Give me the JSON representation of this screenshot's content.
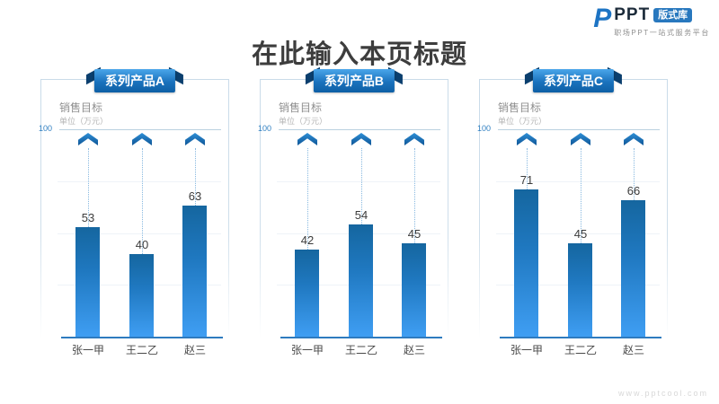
{
  "page": {
    "title": "在此输入本页标题",
    "watermark": "www.pptcool.com"
  },
  "logo": {
    "p_icon": "P",
    "name": "PPT",
    "badge": "版式库",
    "tagline": "职场PPT一站式服务平台"
  },
  "chart_common": {
    "legend_title": "销售目标",
    "unit_label": "单位（万元）",
    "axis_tick": "100"
  },
  "colors": {
    "accent_blue": "#1d74c4",
    "bar_gradient_top": "#15669f",
    "bar_gradient_bottom": "#3f9ef3",
    "ribbon_dark": "#0b3f6e",
    "panel_border": "#c9dbe9",
    "axis_line": "#2e7bbf"
  },
  "chart_data": [
    {
      "type": "bar",
      "title": "系列产品A",
      "categories": [
        "张一甲",
        "王二乙",
        "赵三"
      ],
      "values": [
        53,
        40,
        63
      ],
      "ylabel": "销售目标",
      "unit": "单位（万元）",
      "ylim": [
        0,
        100
      ],
      "target_marker": 100,
      "grid": "faint-horizontal",
      "legend_position": "top-left"
    },
    {
      "type": "bar",
      "title": "系列产品B",
      "categories": [
        "张一甲",
        "王二乙",
        "赵三"
      ],
      "values": [
        42,
        54,
        45
      ],
      "ylabel": "销售目标",
      "unit": "单位（万元）",
      "ylim": [
        0,
        100
      ],
      "target_marker": 100,
      "grid": "faint-horizontal",
      "legend_position": "top-left"
    },
    {
      "type": "bar",
      "title": "系列产品C",
      "categories": [
        "张一甲",
        "王二乙",
        "赵三"
      ],
      "values": [
        71,
        45,
        66
      ],
      "ylabel": "销售目标",
      "unit": "单位（万元）",
      "ylim": [
        0,
        100
      ],
      "target_marker": 100,
      "grid": "faint-horizontal",
      "legend_position": "top-left"
    }
  ]
}
